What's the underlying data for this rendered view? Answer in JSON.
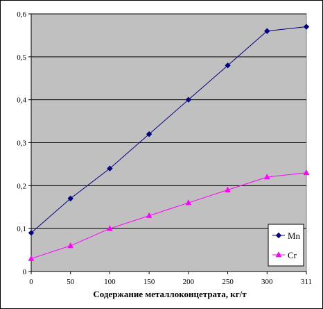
{
  "chart_data": {
    "type": "line",
    "title": "",
    "xlabel": "Содержание металлоконцетрата, кг/т",
    "ylabel": "",
    "categories": [
      "0",
      "50",
      "100",
      "150",
      "200",
      "250",
      "300",
      "311"
    ],
    "ylim": [
      0,
      0.6
    ],
    "y_ticks": [
      "0",
      "0,1",
      "0,2",
      "0,3",
      "0,4",
      "0,5",
      "0,6"
    ],
    "grid": true,
    "legend_position": "bottom-right",
    "series": [
      {
        "name": "Mn",
        "color": "#000080",
        "marker": "diamond",
        "values": [
          0.09,
          0.17,
          0.24,
          0.32,
          0.4,
          0.48,
          0.56,
          0.57
        ]
      },
      {
        "name": "Cr",
        "color": "#ff00ff",
        "marker": "triangle",
        "values": [
          0.03,
          0.06,
          0.1,
          0.13,
          0.16,
          0.19,
          0.22,
          0.23
        ]
      }
    ],
    "plot_background": "#c0c0c0"
  }
}
